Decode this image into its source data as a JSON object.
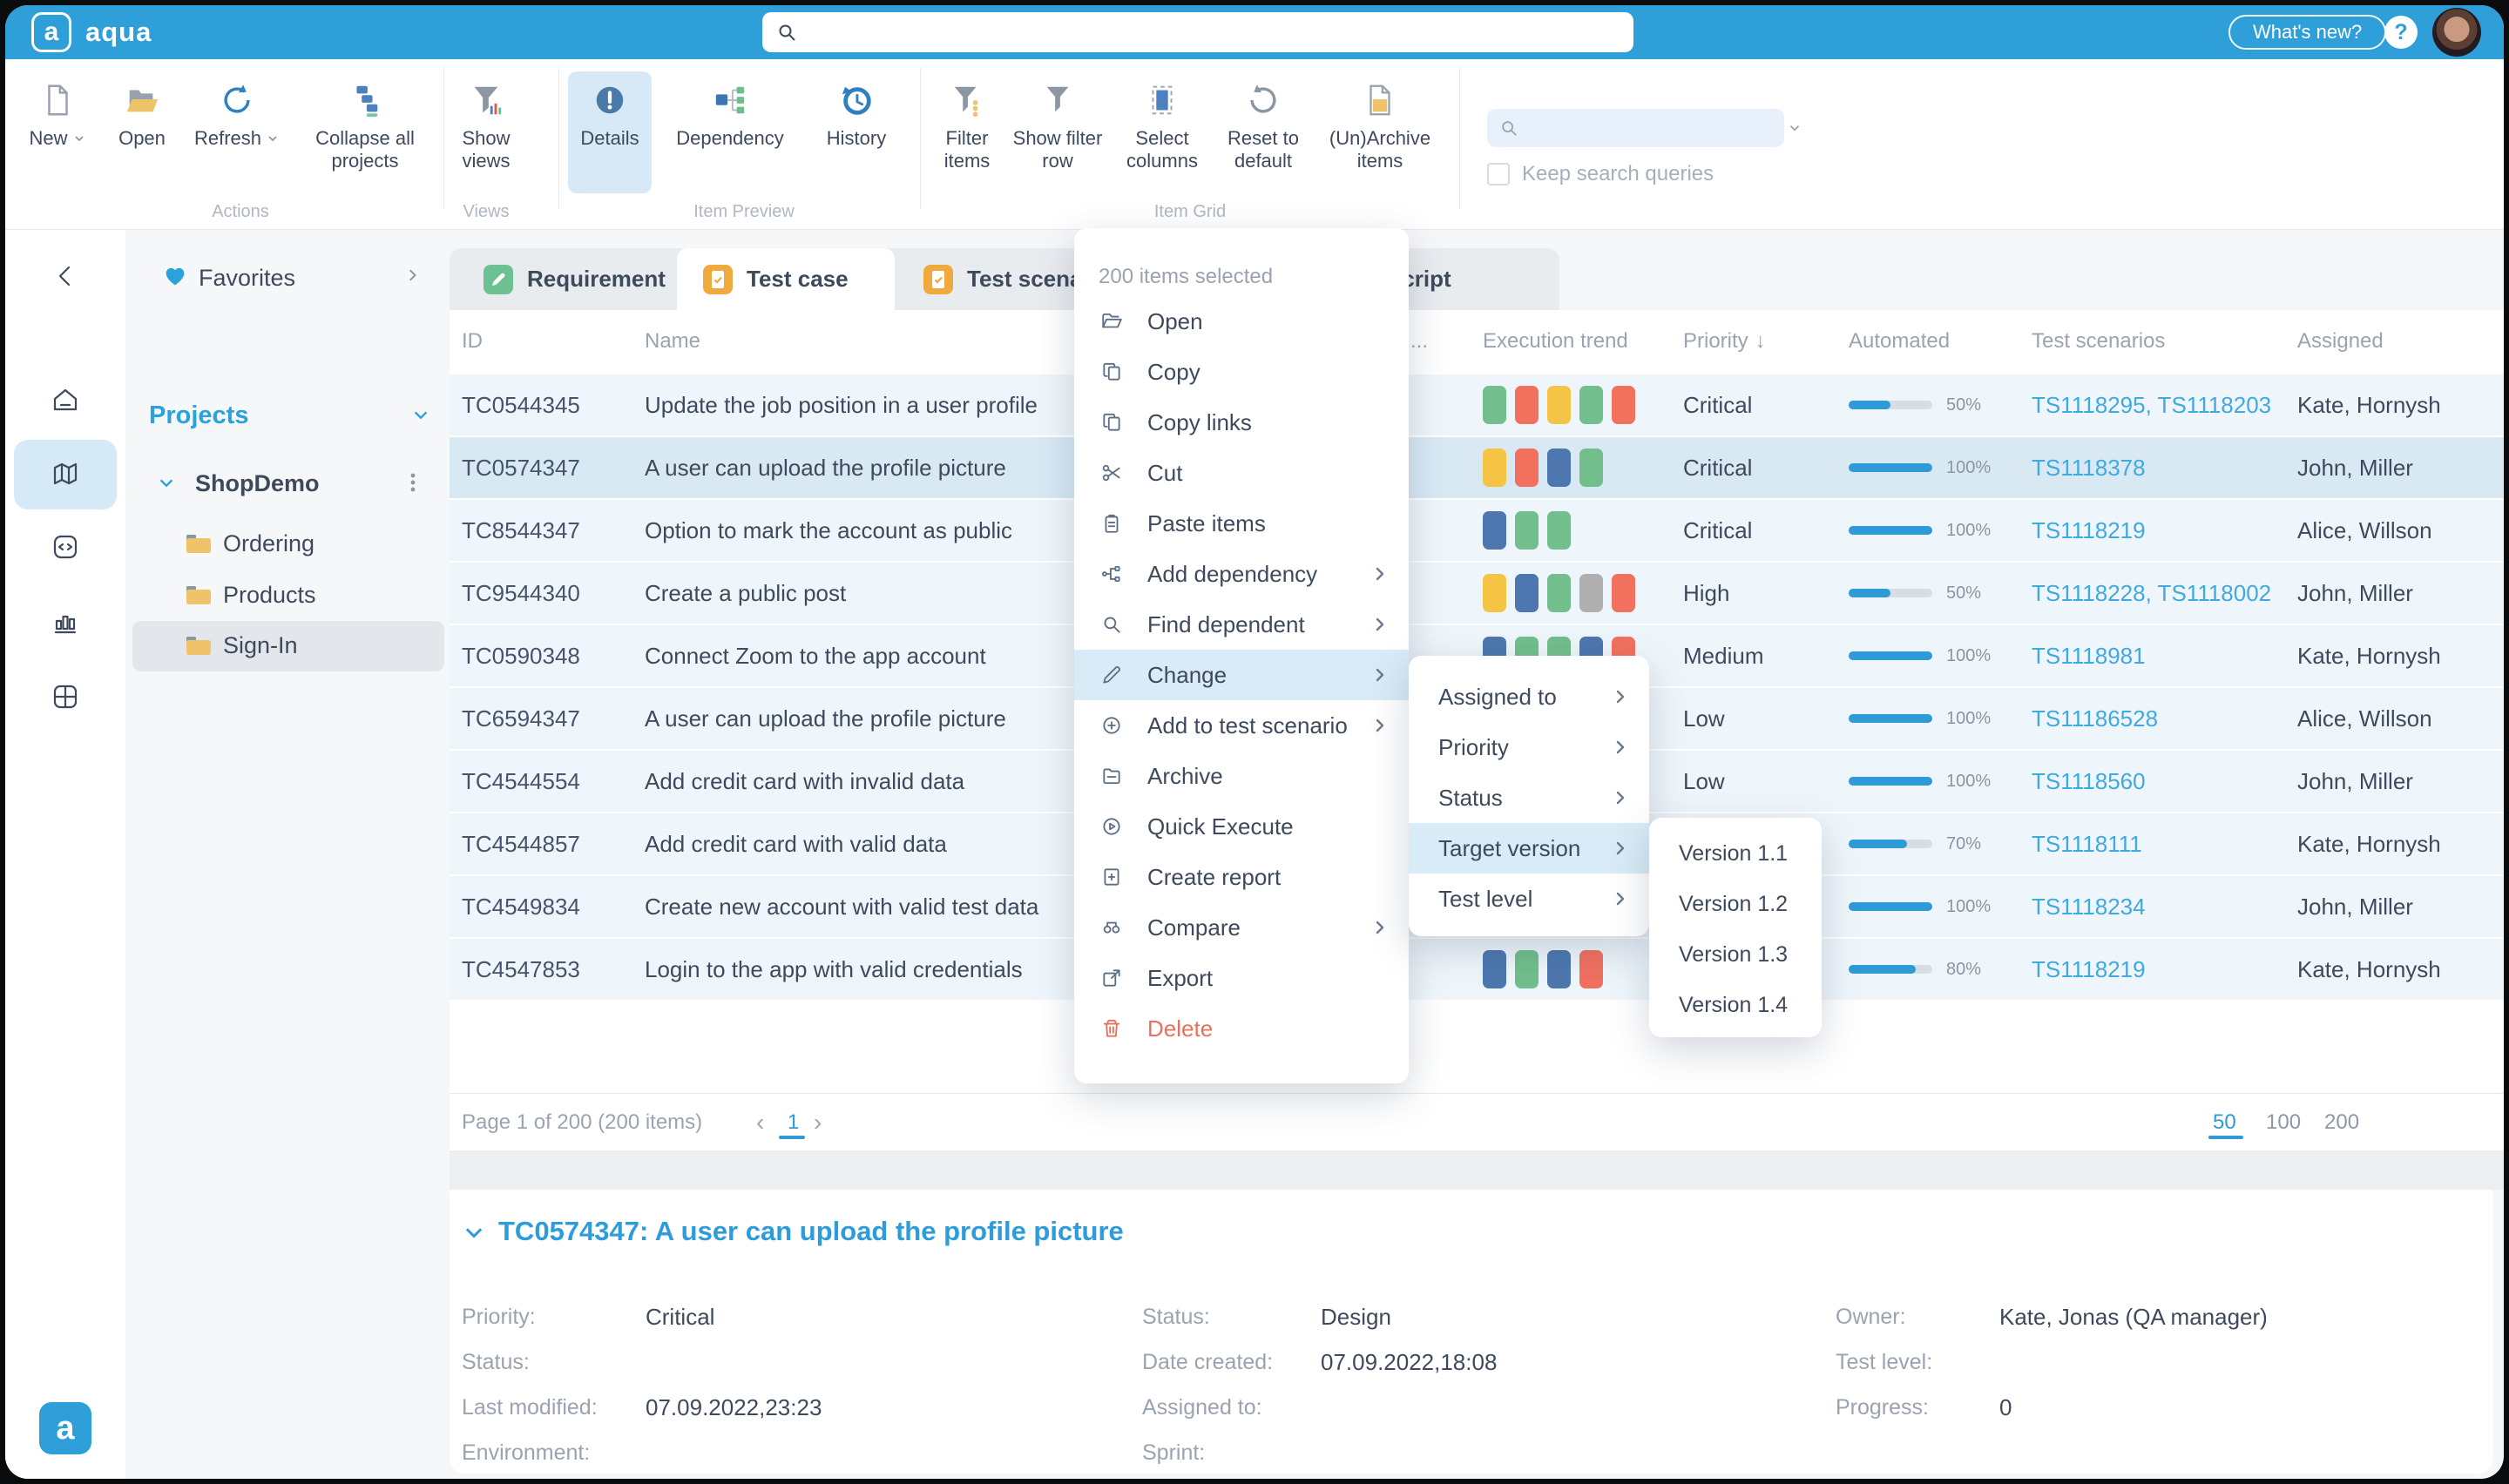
{
  "topbar": {
    "brand": "aqua",
    "search_placeholder": "",
    "whats_new": "What's new?",
    "help": "?"
  },
  "toolbar": {
    "buttons": {
      "new": "New",
      "open": "Open",
      "refresh": "Refresh",
      "collapse": "Collapse all projects",
      "show_views": "Show views",
      "details": "Details",
      "dependency": "Dependency",
      "history": "History",
      "filter_items": "Filter items",
      "show_filter_row": "Show filter row",
      "select_columns": "Select columns",
      "reset": "Reset to default",
      "unarchive": "(Un)Archive items"
    },
    "captions": {
      "actions": "Actions",
      "views": "Views",
      "item_preview": "Item Preview",
      "item_grid": "Item Grid"
    },
    "search_placeholder": "",
    "keep_search": "Keep search queries"
  },
  "sidebar": {
    "favorites": "Favorites",
    "projects": "Projects",
    "project": "ShopDemo",
    "folders": [
      "Ordering",
      "Products",
      "Sign-In"
    ],
    "selected_folder": "Sign-In"
  },
  "tabs": {
    "requirement": "Requirement",
    "test_case": "Test case",
    "test_scenario": "Test scenario",
    "script": "Script",
    "active": "Test case"
  },
  "table": {
    "headers": {
      "id": "ID",
      "name": "Name",
      "more": "...",
      "trend": "Execution trend",
      "priority": "Priority",
      "priority_sort": "↓",
      "automated": "Automated",
      "scenarios": "Test scenarios",
      "assigned": "Assigned"
    },
    "rows": [
      {
        "id": "TC0544345",
        "name": "Update the job position in a user profile",
        "trend": [
          "green",
          "red",
          "yellow",
          "green",
          "red"
        ],
        "priority": "Critical",
        "automated": 50,
        "automated_label": "50%",
        "scenarios": "TS1118295, TS1118203",
        "assigned": "Kate, Hornysh",
        "selected": false
      },
      {
        "id": "TC0574347",
        "name": "A user can upload the profile picture",
        "trend": [
          "yellow",
          "red",
          "blue",
          "green"
        ],
        "priority": "Critical",
        "automated": 100,
        "automated_label": "100%",
        "scenarios": "TS1118378",
        "assigned": "John, Miller",
        "selected": true
      },
      {
        "id": "TC8544347",
        "name": "Option to mark the account as public",
        "trend": [
          "blue",
          "green",
          "green"
        ],
        "priority": "Critical",
        "automated": 100,
        "automated_label": "100%",
        "scenarios": "TS1118219",
        "assigned": "Alice, Willson",
        "selected": false
      },
      {
        "id": "TC9544340",
        "name": "Create a public post",
        "trend": [
          "yellow",
          "blue",
          "green",
          "gray",
          "red"
        ],
        "priority": "High",
        "automated": 50,
        "automated_label": "50%",
        "scenarios": "TS1118228, TS1118002",
        "assigned": "John, Miller",
        "selected": false
      },
      {
        "id": "TC0590348",
        "name": "Connect Zoom to the app account",
        "trend": [
          "blue",
          "green",
          "green",
          "blue",
          "red"
        ],
        "priority": "Medium",
        "automated": 100,
        "automated_label": "100%",
        "scenarios": "TS1118981",
        "assigned": "Kate, Hornysh",
        "selected": false
      },
      {
        "id": "TC6594347",
        "name": "A user can upload the profile picture",
        "trend": [
          "green",
          "blue",
          "red"
        ],
        "priority": "Low",
        "automated": 100,
        "automated_label": "100%",
        "scenarios": "TS11186528",
        "assigned": "Alice, Willson",
        "selected": false
      },
      {
        "id": "TC4544554",
        "name": "Add credit card with invalid data",
        "trend": [
          "blue",
          "green",
          "yellow"
        ],
        "priority": "Low",
        "automated": 100,
        "automated_label": "100%",
        "scenarios": "TS1118560",
        "assigned": "John, Miller",
        "selected": false
      },
      {
        "id": "TC4544857",
        "name": "Add credit card with valid data",
        "trend": [
          "green",
          "gray",
          "blue"
        ],
        "priority": "Low",
        "automated": 70,
        "automated_label": "70%",
        "scenarios": "TS1118111",
        "assigned": "Kate, Hornysh",
        "selected": false
      },
      {
        "id": "TC4549834",
        "name": "Create new account with valid test data",
        "trend": [
          "blue",
          "green",
          "gray",
          "red",
          "red"
        ],
        "priority": "Low",
        "automated": 100,
        "automated_label": "100%",
        "scenarios": "TS1118234",
        "assigned": "John, Miller",
        "selected": false
      },
      {
        "id": "TC4547853",
        "name": "Login to the app with valid credentials",
        "trend": [
          "blue",
          "green",
          "blue",
          "red"
        ],
        "priority": "Low",
        "automated": 80,
        "automated_label": "80%",
        "scenarios": "TS1118219",
        "assigned": "Kate, Hornysh",
        "selected": false
      }
    ]
  },
  "pagination": {
    "summary": "Page 1 of 200 (200 items)",
    "prev": "‹",
    "page": "1",
    "next": "›",
    "sizes": [
      "50",
      "100",
      "200"
    ],
    "active_size": "50"
  },
  "context_menu": {
    "header": "200 items selected",
    "items": [
      {
        "label": "Open"
      },
      {
        "label": "Copy"
      },
      {
        "label": "Copy links"
      },
      {
        "label": "Cut"
      },
      {
        "label": "Paste items"
      },
      {
        "label": "Add dependency",
        "submenu": true
      },
      {
        "label": "Find dependent",
        "submenu": true
      },
      {
        "label": "Change",
        "submenu": true,
        "highlighted": true
      },
      {
        "label": "Add to test scenario",
        "submenu": true
      },
      {
        "label": "Archive"
      },
      {
        "label": "Quick Execute"
      },
      {
        "label": "Create report"
      },
      {
        "label": "Compare",
        "submenu": true
      },
      {
        "label": "Export"
      },
      {
        "label": "Delete",
        "danger": true
      }
    ]
  },
  "change_submenu": {
    "items": [
      {
        "label": "Assigned to"
      },
      {
        "label": "Priority"
      },
      {
        "label": "Status"
      },
      {
        "label": "Target version",
        "highlighted": true
      },
      {
        "label": "Test level"
      }
    ]
  },
  "version_submenu": {
    "items": [
      "Version 1.1",
      "Version 1.2",
      "Version 1.3",
      "Version 1.4"
    ]
  },
  "details": {
    "title": "TC0574347: A user can upload the profile picture",
    "col1": [
      {
        "label": "Priority:",
        "value": "Critical"
      },
      {
        "label": "Status:",
        "value": ""
      },
      {
        "label": "Last modified:",
        "value": "07.09.2022,23:23"
      },
      {
        "label": "Environment:",
        "value": ""
      }
    ],
    "col2": [
      {
        "label": "Status:",
        "value": "Design"
      },
      {
        "label": "Date created:",
        "value": "07.09.2022,18:08"
      },
      {
        "label": "Assigned to:",
        "value": ""
      },
      {
        "label": "Sprint:",
        "value": ""
      }
    ],
    "col3": [
      {
        "label": "Owner:",
        "value": "Kate, Jonas (QA manager)"
      },
      {
        "label": "Test level:",
        "value": ""
      },
      {
        "label": "Progress:",
        "value": "0"
      }
    ]
  },
  "colors": {
    "accent": "#2E9FD9",
    "link": "#3FA9E0",
    "title_blue": "#2D9CDB",
    "green": "#72BE8C",
    "red": "#F2705E",
    "yellow": "#F6C445",
    "blue": "#4D77AE",
    "gray": "#AFAFAF"
  }
}
